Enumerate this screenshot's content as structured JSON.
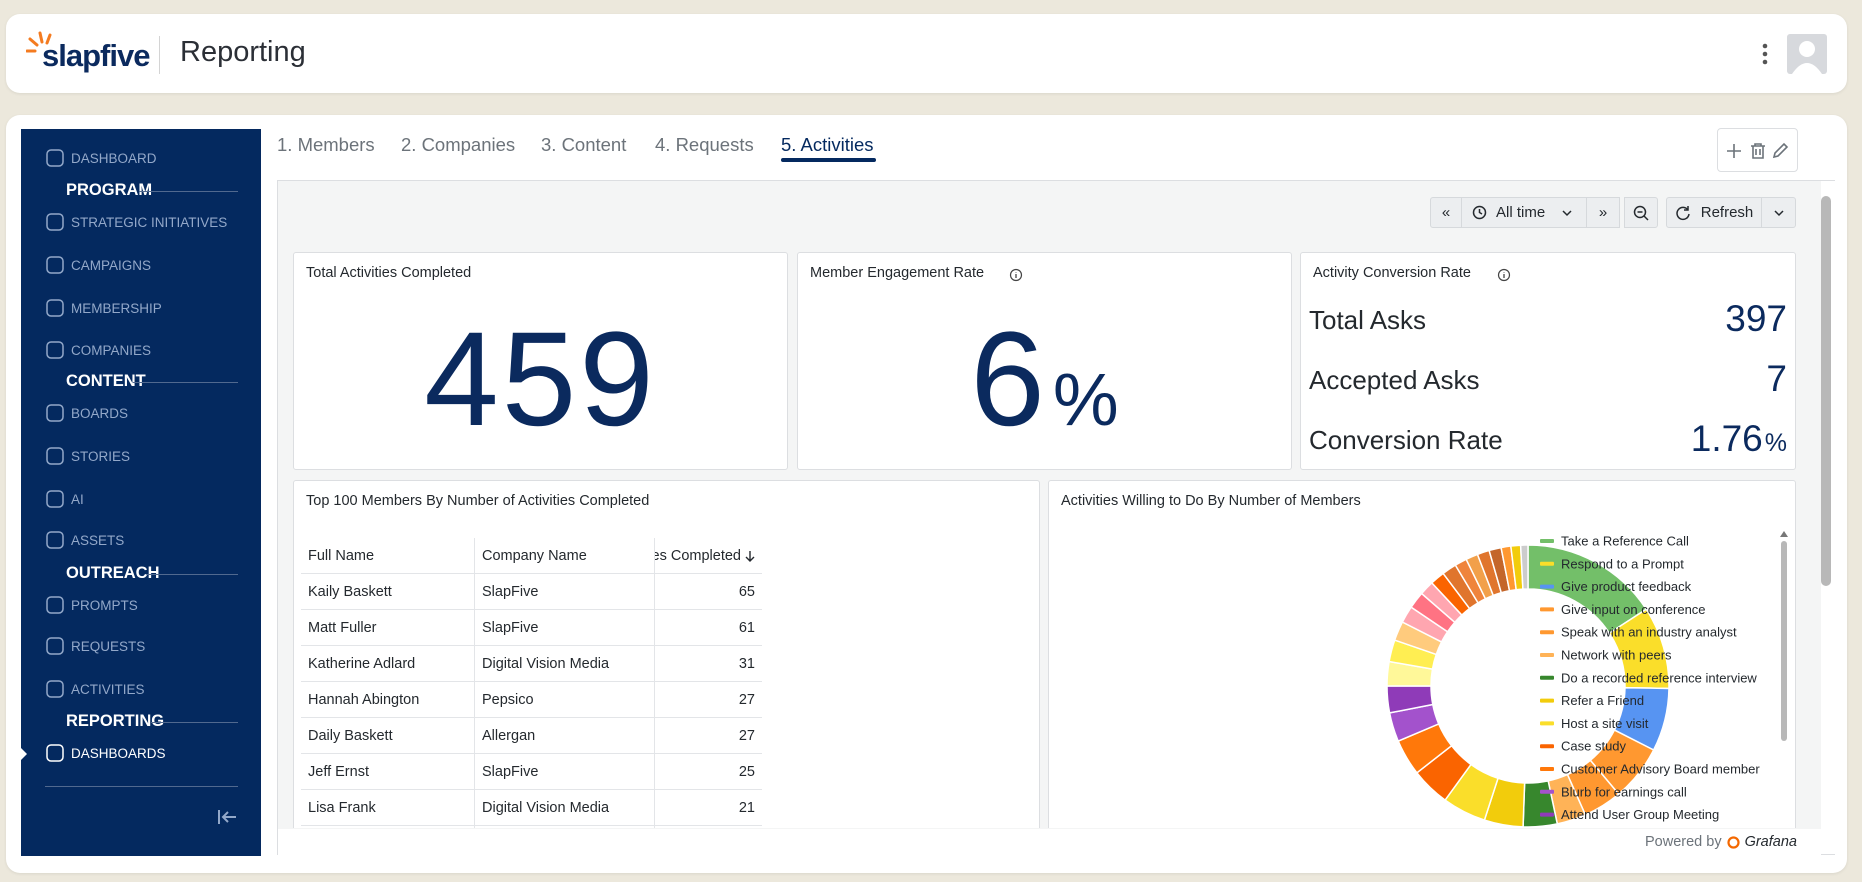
{
  "header": {
    "brand": "slapfive",
    "title": "Reporting"
  },
  "sidebar": {
    "items": [
      "DASHBOARD",
      "PROGRAM",
      "STRATEGIC INITIATIVES",
      "CAMPAIGNS",
      "MEMBERSHIP",
      "COMPANIES",
      "CONTENT",
      "BOARDS",
      "STORIES",
      "AI",
      "ASSETS",
      "OUTREACH",
      "PROMPTS",
      "REQUESTS",
      "ACTIVITIES",
      "REPORTING",
      "DASHBOARDS"
    ]
  },
  "tabs": [
    "1. Members",
    "2. Companies",
    "3. Content",
    "4. Requests",
    "5. Activities"
  ],
  "toolbar": {
    "range": "All time",
    "refresh": "Refresh"
  },
  "stats": [
    {
      "title": "Total Activities Completed",
      "value": 459
    },
    {
      "title": "Member Engagement Rate",
      "value": 6,
      "unit": "%"
    }
  ],
  "conversion": {
    "title": "Activity Conversion Rate",
    "rows": [
      {
        "label": "Total Asks",
        "value": 397
      },
      {
        "label": "Accepted Asks",
        "value": 7
      },
      {
        "label": "Conversion Rate",
        "value": 1.76,
        "unit": "%"
      }
    ]
  },
  "table": {
    "title": "Top 100 Members By Number of Activities Completed",
    "columns": [
      "Full Name",
      "Company Name",
      "Activities Completed"
    ],
    "rows": [
      [
        "Kaily Baskett",
        "SlapFive",
        65
      ],
      [
        "Matt Fuller",
        "SlapFive",
        61
      ],
      [
        "Katherine Adlard",
        "Digital Vision Media",
        31
      ],
      [
        "Hannah Abington",
        "Pepsico",
        27
      ],
      [
        "Daily Baskett",
        "Allergan",
        27
      ],
      [
        "Jeff Ernst",
        "SlapFive",
        25
      ],
      [
        "Lisa Frank",
        "Digital Vision Media",
        21
      ]
    ]
  },
  "chart_data": {
    "type": "pie",
    "donut": true,
    "title": "Activities Willing to Do By Number of Members",
    "categories": [
      "Take a Reference Call",
      "Respond to a Prompt",
      "Give product feedback",
      "Give input on conference",
      "Speak with an industry analyst",
      "Network with peers",
      "Do a recorded reference interview",
      "Refer a Friend",
      "Host a site visit",
      "Case study",
      "Customer Advisory Board member",
      "Blurb for earnings call",
      "Attend User Group Meeting",
      null,
      null,
      null,
      null,
      null,
      null,
      null,
      null,
      null,
      null,
      null,
      null,
      null,
      null,
      null
    ],
    "values": [
      57,
      34,
      26,
      23,
      16,
      12,
      14,
      16,
      18,
      16,
      15,
      12,
      11,
      10,
      9,
      8,
      7,
      7,
      6,
      6,
      6,
      5,
      5,
      5,
      5,
      4,
      4,
      3
    ],
    "colors": [
      "#73bf69",
      "#fade2a",
      "#5794f2",
      "#ff9830",
      "#ff9830",
      "#ffb357",
      "#37872d",
      "#f2cc0c",
      "#fade2a",
      "#fa6400",
      "#ff780a",
      "#a352cc",
      "#8f3bb8",
      "#fff899",
      "#ffee52",
      "#ffcb7d",
      "#ffa6b0",
      "#ff7383",
      "#ffa6b0",
      "#fa6400",
      "#e0752d",
      "#ef843c",
      "#f2a04a",
      "#e0752d",
      "#c4662a",
      "#ff9830",
      "#f2cc0c",
      "#cccccc"
    ]
  },
  "footer": {
    "powered_by": "Powered by",
    "brand": "Grafana"
  }
}
